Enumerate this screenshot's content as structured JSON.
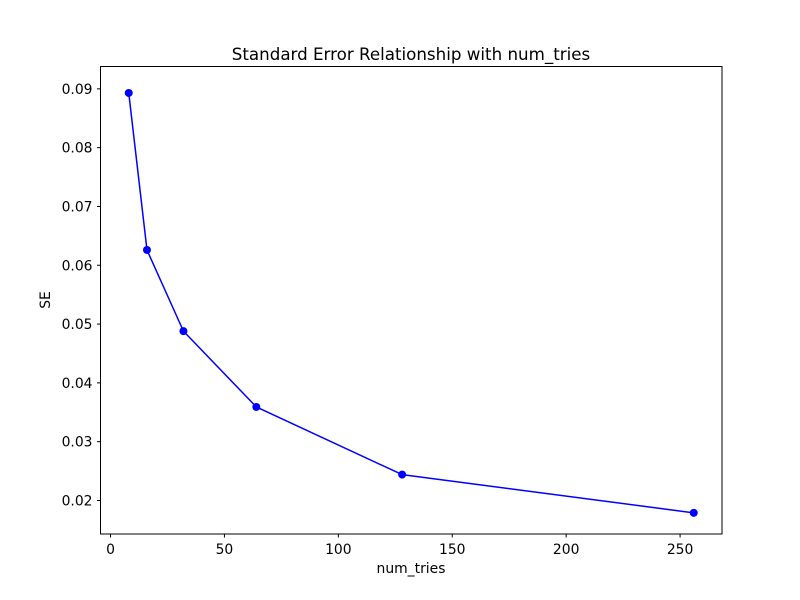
{
  "figure": {
    "background_color": "#ffffff",
    "frame_color": "#000000",
    "text_color": "#000000"
  },
  "chart_data": {
    "type": "line",
    "title": "Standard Error Relationship with num_tries",
    "xlabel": "num_tries",
    "ylabel": "SE",
    "series": [
      {
        "name": "SE vs num_tries",
        "x": [
          8,
          16,
          32,
          64,
          128,
          256
        ],
        "y": [
          0.0893,
          0.0626,
          0.0488,
          0.0359,
          0.0244,
          0.0179
        ]
      }
    ],
    "line_color": "#0000ff",
    "marker": "o",
    "marker_color": "#0000ff",
    "xlim": [
      -4.4,
      268.4
    ],
    "ylim": [
      0.0143,
      0.0938
    ],
    "x_ticks": [
      0,
      50,
      100,
      150,
      200,
      250
    ],
    "x_tick_labels": [
      "0",
      "50",
      "100",
      "150",
      "200",
      "250"
    ],
    "y_ticks": [
      0.02,
      0.03,
      0.04,
      0.05,
      0.06,
      0.07,
      0.08,
      0.09
    ],
    "y_tick_labels": [
      "0.02",
      "0.03",
      "0.04",
      "0.05",
      "0.06",
      "0.07",
      "0.08",
      "0.09"
    ],
    "grid": false,
    "legend": null
  }
}
